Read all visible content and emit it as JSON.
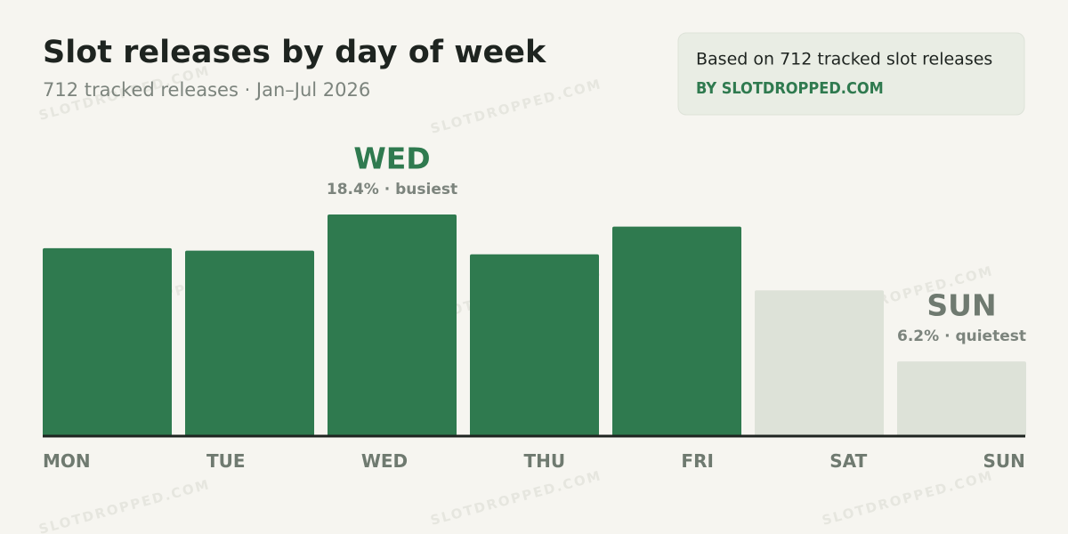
{
  "chart_data": {
    "type": "bar",
    "title": "Slot releases by day of week",
    "subtitle": "712 tracked releases · Jan–Jul 2026",
    "note": "Based on 712 tracked slot releases",
    "source": "BY SLOTDROPPED.COM",
    "watermark": "SLOTDROPPED.COM",
    "categories": [
      "MON",
      "TUE",
      "WED",
      "THU",
      "FRI",
      "SAT",
      "SUN"
    ],
    "values": [
      15.6,
      15.4,
      18.4,
      15.1,
      17.4,
      12.1,
      6.2
    ],
    "colors": [
      "#2f7a4f",
      "#2f7a4f",
      "#2f7a4f",
      "#2f7a4f",
      "#2f7a4f",
      "#dde2d8",
      "#dde2d8"
    ],
    "annotations": [
      {
        "title": "WED",
        "text": "18.4% · busiest",
        "color": "#2f7a4f"
      },
      {
        "title": "SUN",
        "text": "6.2% · quietest",
        "color": "#6f7a70"
      }
    ]
  }
}
